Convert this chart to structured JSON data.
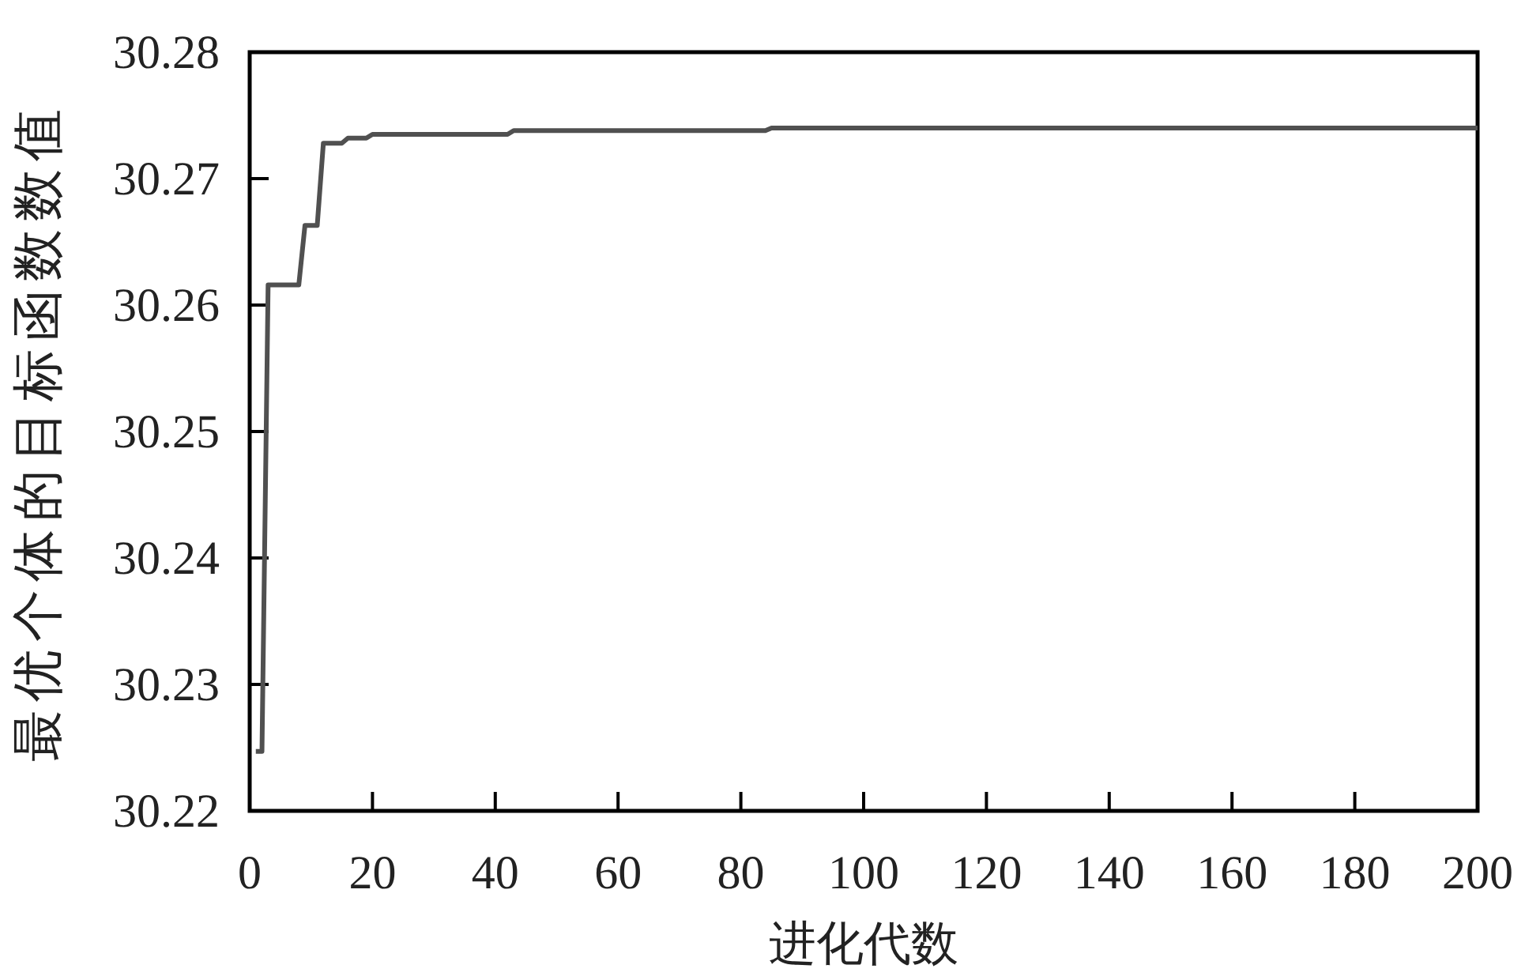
{
  "chart_data": {
    "type": "line",
    "xlabel": "进化代数",
    "ylabel": "最优个体的目标函数数值",
    "x": [
      1,
      2,
      3,
      8,
      9,
      11,
      12,
      15,
      16,
      19,
      20,
      42,
      43,
      84,
      85,
      200
    ],
    "values": [
      30.2247,
      30.2247,
      30.2616,
      30.2616,
      30.2663,
      30.2663,
      30.2728,
      30.2728,
      30.2732,
      30.2732,
      30.2735,
      30.2735,
      30.2738,
      30.2738,
      30.274,
      30.274
    ],
    "color": "#505050",
    "line_style": "solid",
    "xlim": [
      0,
      200
    ],
    "xticks": [
      0,
      20,
      40,
      60,
      80,
      100,
      120,
      140,
      160,
      180,
      200
    ],
    "ylim": [
      30.22,
      30.28
    ],
    "yticks": [
      30.22,
      30.23,
      30.24,
      30.25,
      30.26,
      30.27,
      30.28
    ]
  }
}
